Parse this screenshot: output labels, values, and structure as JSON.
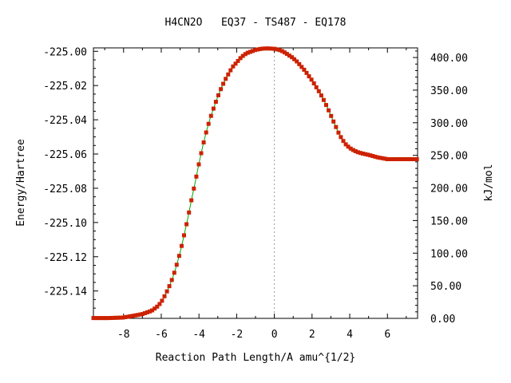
{
  "chart_data": {
    "type": "line",
    "title": "H4CN2O   EQ37 - TS487 - EQ178",
    "xlabel": "Reaction Path Length/A amu^{1/2}",
    "ylabel": "Energy/Hartree",
    "y2label": "kJ/mol",
    "xlim": [
      -9.6,
      7.6
    ],
    "ylim": [
      -225.156,
      -224.998
    ],
    "y2lim": [
      0,
      414.8
    ],
    "grid": false,
    "legend": "none",
    "x_ticks": [
      -8,
      -6,
      -4,
      -2,
      0,
      2,
      4,
      6
    ],
    "x_tick_labels": [
      "-8",
      "-6",
      "-4",
      "-2",
      "0",
      "2",
      "4",
      "6"
    ],
    "y_ticks": [
      -225.0,
      -225.02,
      -225.04,
      -225.06,
      -225.08,
      -225.1,
      -225.12,
      -225.14
    ],
    "y_tick_labels": [
      "-225.00",
      "-225.02",
      "-225.04",
      "-225.06",
      "-225.08",
      "-225.10",
      "-225.12",
      "-225.14"
    ],
    "y2_ticks": [
      0,
      50,
      100,
      150,
      200,
      250,
      300,
      350,
      400
    ],
    "y2_tick_labels": [
      "0.00",
      "50.00",
      "100.00",
      "150.00",
      "200.00",
      "250.00",
      "300.00",
      "350.00",
      "400.00"
    ],
    "ts_x": 0,
    "line_color": "#00aa00",
    "marker_color": "#cc2200",
    "series": [
      {
        "x": [
          -9.6,
          -8.8,
          -8.0,
          -7.5,
          -7.0,
          -6.5,
          -6.2,
          -6.0,
          -5.8,
          -5.6,
          -5.4,
          -5.2,
          -5.0,
          -4.8,
          -4.6,
          -4.4,
          -4.2,
          -4.0,
          -3.8,
          -3.6,
          -3.4,
          -3.2,
          -3.0,
          -2.8,
          -2.6,
          -2.4,
          -2.2,
          -2.0,
          -1.8,
          -1.6,
          -1.4,
          -1.2,
          -1.0,
          -0.8,
          -0.6,
          -0.4,
          -0.2,
          0.0,
          0.2,
          0.4,
          0.6,
          0.8,
          1.0,
          1.2,
          1.4,
          1.6,
          1.8,
          2.0,
          2.2,
          2.4,
          2.6,
          2.8,
          3.0,
          3.2,
          3.4,
          3.6,
          3.8,
          4.0,
          4.2,
          4.4,
          4.6,
          5.0,
          5.5,
          6.0,
          6.5,
          7.0,
          7.6
        ],
        "y": [
          -225.1558,
          -225.1558,
          -225.1555,
          -225.1545,
          -225.1535,
          -225.1515,
          -225.149,
          -225.1465,
          -225.1425,
          -225.138,
          -225.1325,
          -225.1255,
          -225.1175,
          -225.108,
          -225.098,
          -225.087,
          -225.0765,
          -225.0655,
          -225.0555,
          -225.0465,
          -225.039,
          -225.0325,
          -225.0265,
          -225.021,
          -225.0165,
          -225.0125,
          -225.009,
          -225.0065,
          -225.004,
          -225.002,
          -225.0008,
          -225.0,
          -224.9992,
          -224.9987,
          -224.9984,
          -224.9983,
          -224.9984,
          -224.9985,
          -224.999,
          -224.9998,
          -225.001,
          -225.0025,
          -225.004,
          -225.006,
          -225.0085,
          -225.011,
          -225.014,
          -225.017,
          -225.0205,
          -225.024,
          -225.028,
          -225.0325,
          -225.0375,
          -225.0425,
          -225.0475,
          -225.0515,
          -225.0545,
          -225.0565,
          -225.0578,
          -225.0588,
          -225.0595,
          -225.0605,
          -225.062,
          -225.063,
          -225.063,
          -225.063,
          -225.063
        ]
      }
    ]
  }
}
